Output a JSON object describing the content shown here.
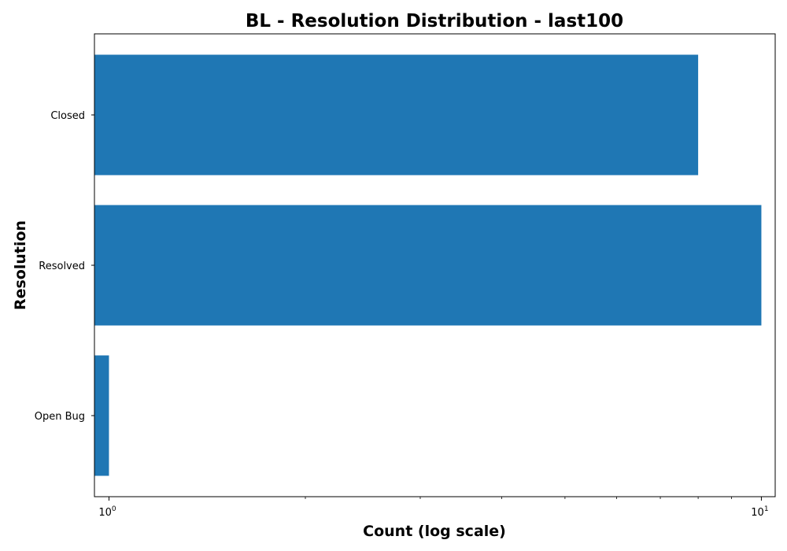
{
  "chart_data": {
    "type": "bar",
    "orientation": "horizontal",
    "title": "BL - Resolution Distribution - last100",
    "xlabel": "Count (log scale)",
    "ylabel": "Resolution",
    "x_scale": "log",
    "xlim": [
      0.95,
      10.5
    ],
    "categories": [
      "Closed",
      "Resolved",
      "Open Bug"
    ],
    "values": [
      8,
      10,
      1
    ],
    "bar_color": "#1f77b4",
    "x_ticks": [
      {
        "value": 1,
        "base": "10",
        "exp": "0"
      },
      {
        "value": 10,
        "base": "10",
        "exp": "1"
      }
    ],
    "grid": false
  }
}
